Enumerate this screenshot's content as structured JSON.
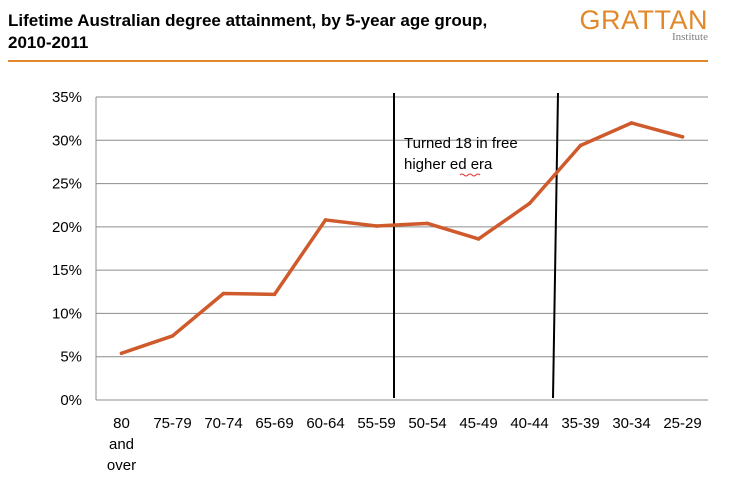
{
  "header": {
    "title_line1": "Lifetime Australian degree  attainment, by 5-year age group,",
    "title_line2": "2010-2011",
    "logo_word": "GRATTAN",
    "logo_sub": "Institute",
    "accent_color": "#e0882a"
  },
  "chart_data": {
    "type": "line",
    "title": "Lifetime Australian degree  attainment, by 5-year age group, 2010-2011",
    "xlabel": "",
    "ylabel": "",
    "categories": [
      "80 and over",
      "75-79",
      "70-74",
      "65-69",
      "60-64",
      "55-59",
      "50-54",
      "45-49",
      "40-44",
      "35-39",
      "30-34",
      "25-29"
    ],
    "category_lines": [
      [
        "80",
        "and",
        "over"
      ],
      [
        "75-79"
      ],
      [
        "70-74"
      ],
      [
        "65-69"
      ],
      [
        "60-64"
      ],
      [
        "55-59"
      ],
      [
        "50-54"
      ],
      [
        "45-49"
      ],
      [
        "40-44"
      ],
      [
        "35-39"
      ],
      [
        "30-34"
      ],
      [
        "25-29"
      ]
    ],
    "series": [
      {
        "values": [
          5.4,
          7.4,
          12.3,
          12.2,
          20.8,
          20.1,
          20.4,
          18.6,
          22.7,
          29.4,
          32.0,
          30.4
        ],
        "color": "#cf5a2b"
      }
    ],
    "ylim": [
      0,
      35
    ],
    "yticks": [
      0,
      5,
      10,
      15,
      20,
      25,
      30,
      35
    ],
    "ytick_labels": [
      "0%",
      "5%",
      "10%",
      "15%",
      "20%",
      "25%",
      "30%",
      "35%"
    ],
    "grid": true,
    "legend": "none",
    "annotation": {
      "line1": "Turned 18 in free",
      "line2": "higher ed era"
    }
  }
}
